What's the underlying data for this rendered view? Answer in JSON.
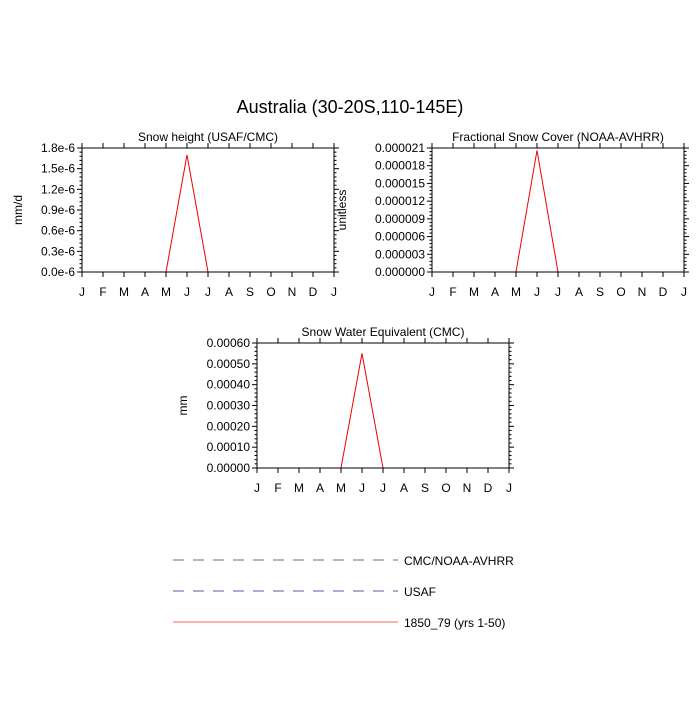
{
  "title": "Australia (30-20S,110-145E)",
  "months": [
    "J",
    "F",
    "M",
    "A",
    "M",
    "J",
    "J",
    "A",
    "S",
    "O",
    "N",
    "D",
    "J"
  ],
  "legend": [
    {
      "label": "CMC/NOAA-AVHRR",
      "color": "#8c8c8c",
      "style": "dashed"
    },
    {
      "label": "USAF",
      "color": "#7b7bbd",
      "style": "dashed"
    },
    {
      "label": "1850_79 (yrs 1-50)",
      "color": "#ff8080",
      "style": "solid"
    }
  ],
  "chart_data": [
    {
      "type": "line",
      "title": "Snow height (USAF/CMC)",
      "ylabel": "mm/d",
      "ylim": [
        0,
        1.8e-06
      ],
      "yticks": [
        "0.0e-6",
        "0.3e-6",
        "0.6e-6",
        "0.9e-6",
        "1.2e-6",
        "1.5e-6",
        "1.8e-6"
      ],
      "xlim": [
        0,
        12
      ],
      "series": [
        {
          "color": "#ee0000",
          "style": "solid",
          "x": [
            0,
            1,
            2,
            3,
            4,
            5,
            6,
            7,
            8,
            9,
            10,
            11,
            12
          ],
          "values": [
            0,
            0,
            0,
            0,
            0,
            1.7e-06,
            0,
            0,
            0,
            0,
            0,
            0,
            0
          ]
        },
        {
          "color": "#3a3a9a",
          "style": "dashed",
          "x": [
            0,
            1,
            2,
            3,
            4,
            5,
            6,
            7,
            8,
            9,
            10,
            11,
            12
          ],
          "values": [
            0,
            0,
            0,
            0,
            0,
            0,
            0,
            0,
            0,
            0,
            0,
            0,
            0
          ]
        }
      ]
    },
    {
      "type": "line",
      "title": "Fractional Snow Cover (NOAA-AVHRR)",
      "ylabel": "unitless",
      "ylim": [
        0,
        2.1e-05
      ],
      "yticks": [
        "0.000000",
        "0.000003",
        "0.000006",
        "0.000009",
        "0.000012",
        "0.000015",
        "0.000018",
        "0.000021"
      ],
      "xlim": [
        0,
        12
      ],
      "series": [
        {
          "color": "#ee0000",
          "style": "solid",
          "x": [
            0,
            1,
            2,
            3,
            4,
            5,
            6,
            7,
            8,
            9,
            10,
            11,
            12
          ],
          "values": [
            0,
            0,
            0,
            0,
            0,
            2.06e-05,
            0,
            0,
            0,
            0,
            0,
            0,
            0
          ]
        },
        {
          "color": "#606060",
          "style": "dashed",
          "x": [
            0,
            1,
            2,
            3,
            4,
            5,
            6,
            7,
            8,
            9,
            10,
            11,
            12
          ],
          "values": [
            0,
            0,
            0,
            0,
            0,
            0,
            0,
            0,
            0,
            0,
            0,
            0,
            0
          ]
        }
      ]
    },
    {
      "type": "line",
      "title": "Snow Water Equivalent (CMC)",
      "ylabel": "mm",
      "ylim": [
        0,
        0.0006
      ],
      "yticks": [
        "0.00000",
        "0.00010",
        "0.00020",
        "0.00030",
        "0.00040",
        "0.00050",
        "0.00060"
      ],
      "xlim": [
        0,
        12
      ],
      "series": [
        {
          "color": "#ee0000",
          "style": "solid",
          "x": [
            0,
            1,
            2,
            3,
            4,
            5,
            6,
            7,
            8,
            9,
            10,
            11,
            12
          ],
          "values": [
            0,
            0,
            0,
            0,
            0,
            0.00055,
            0,
            0,
            0,
            0,
            0,
            0,
            0
          ]
        },
        {
          "color": "#606060",
          "style": "dashed",
          "x": [
            0,
            1,
            2,
            3,
            4,
            5,
            6,
            7,
            8,
            9,
            10,
            11,
            12
          ],
          "values": [
            0,
            0,
            0,
            0,
            0,
            0,
            0,
            0,
            0,
            0,
            0,
            0,
            0
          ]
        }
      ]
    }
  ]
}
